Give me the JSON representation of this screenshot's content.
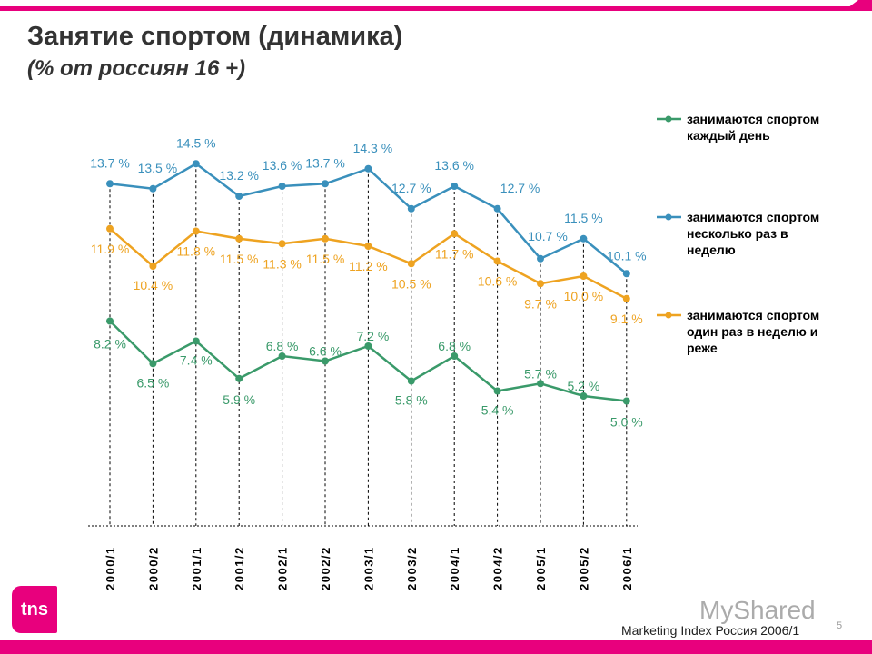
{
  "header": {
    "title": "Занятие спортом (динамика)",
    "subtitle": "(% от россиян 16 +)"
  },
  "footer": {
    "source": "Marketing Index Россия 2006/1",
    "page": "5",
    "logo": "tns",
    "watermark": "MyShared"
  },
  "chart_data": {
    "type": "line",
    "categories": [
      "2000/1",
      "2000/2",
      "2001/1",
      "2001/2",
      "2002/1",
      "2002/2",
      "2003/1",
      "2003/2",
      "2004/1",
      "2004/2",
      "2005/1",
      "2005/2",
      "2006/1"
    ],
    "ylim": [
      0,
      14.5
    ],
    "grid": false,
    "legend_placement": "right",
    "label_suffix": " %",
    "series": [
      {
        "name": "занимаются спортом каждый день",
        "legend_lines": [
          "занимаются спортом",
          "каждый день"
        ],
        "color": "#3a9a6a",
        "values": [
          8.2,
          6.5,
          7.4,
          5.9,
          6.8,
          6.6,
          7.2,
          5.8,
          6.8,
          5.4,
          5.7,
          5.2,
          5.0
        ]
      },
      {
        "name": "занимаются спортом несколько раз в неделю",
        "legend_lines": [
          "занимаются спортом",
          "несколько раз в",
          "неделю"
        ],
        "color": "#3a90bc",
        "values": [
          13.7,
          13.5,
          14.5,
          13.2,
          13.6,
          13.7,
          14.3,
          12.7,
          13.6,
          12.7,
          10.7,
          11.5,
          10.1
        ]
      },
      {
        "name": "занимаются спортом один раз в неделю и реже",
        "legend_lines": [
          "занимаются спортом",
          "один раз в неделю и",
          "реже"
        ],
        "color": "#eea321",
        "values": [
          11.9,
          10.4,
          11.8,
          11.5,
          11.3,
          11.5,
          11.2,
          10.5,
          11.7,
          10.6,
          9.7,
          10.0,
          9.1
        ]
      }
    ]
  }
}
